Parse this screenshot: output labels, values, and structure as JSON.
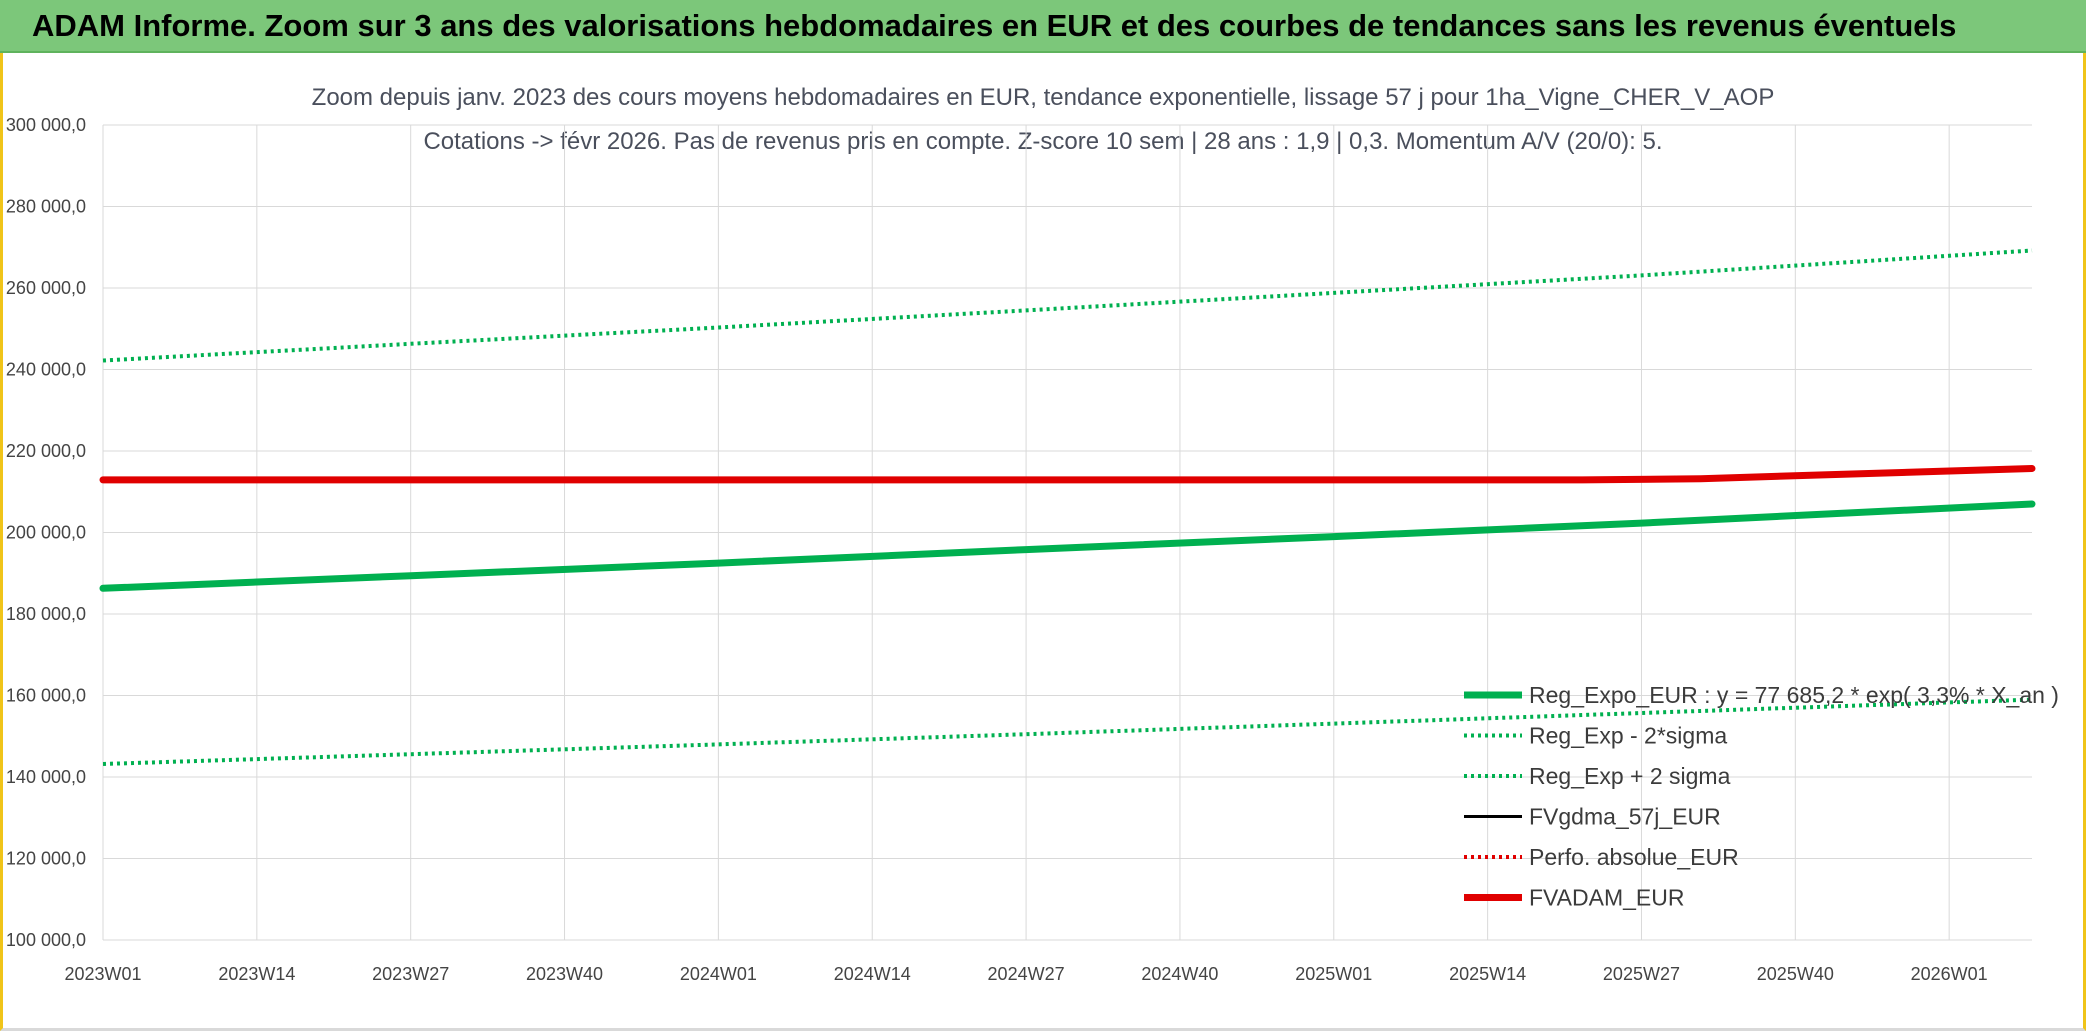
{
  "banner": {
    "title": "ADAM Informe. Zoom sur 3 ans des valorisations hebdomadaires en EUR et des courbes de tendances sans les revenus éventuels"
  },
  "colors": {
    "banner_bg": "#7cc77a",
    "green": "#00b050",
    "red": "#e00000",
    "black": "#000000",
    "grid": "#d9d9d9"
  },
  "chart_data": {
    "type": "line",
    "title": "Zoom depuis janv. 2023 des cours moyens hebdomadaires en EUR, tendance exponentielle, lissage 57 j pour 1ha_Vigne_CHER_V_AOP",
    "subtitle": "Cotations -> févr 2026. Pas de revenus pris en compte. Z-score 10 sem | 28 ans : 1,9 | 0,3. Momentum A/V (20/0): 5.",
    "x_tick_labels": [
      "2023W01",
      "2023W14",
      "2023W27",
      "2023W40",
      "2024W01",
      "2024W14",
      "2024W27",
      "2024W40",
      "2025W01",
      "2025W14",
      "2025W27",
      "2025W40",
      "2026W01"
    ],
    "x_range_weeks": [
      0,
      163
    ],
    "y_tick_labels": [
      "100 000,0",
      "120 000,0",
      "140 000,0",
      "160 000,0",
      "180 000,0",
      "200 000,0",
      "220 000,0",
      "240 000,0",
      "260 000,0",
      "280 000,0",
      "300 000,0"
    ],
    "ylim": [
      100000,
      300000
    ],
    "grid": true,
    "legend_position": "bottom-right",
    "series": [
      {
        "name": "Reg_Expo_EUR : y = 77 685,2 * exp( 3,3% * X_an )",
        "style": "solid-thick",
        "color": "#00b050",
        "points": [
          [
            0,
            186300
          ],
          [
            26,
            189400
          ],
          [
            52,
            192500
          ],
          [
            78,
            195800
          ],
          [
            104,
            199000
          ],
          [
            130,
            202300
          ],
          [
            163,
            207000
          ]
        ]
      },
      {
        "name": "Reg_Exp - 2*sigma",
        "style": "dotted",
        "color": "#00b050",
        "points": [
          [
            0,
            143200
          ],
          [
            26,
            145600
          ],
          [
            52,
            148000
          ],
          [
            78,
            150500
          ],
          [
            104,
            153100
          ],
          [
            130,
            155700
          ],
          [
            163,
            159000
          ]
        ]
      },
      {
        "name": "Reg_Exp + 2 sigma",
        "style": "dotted",
        "color": "#00b050",
        "points": [
          [
            0,
            242200
          ],
          [
            26,
            246300
          ],
          [
            52,
            250300
          ],
          [
            78,
            254500
          ],
          [
            104,
            258800
          ],
          [
            130,
            263100
          ],
          [
            163,
            269200
          ]
        ]
      },
      {
        "name": "FVgdma_57j_EUR",
        "style": "solid",
        "color": "#000000",
        "points": [
          [
            0,
            213000
          ],
          [
            125,
            213000
          ],
          [
            135,
            213300
          ],
          [
            145,
            214200
          ],
          [
            155,
            215100
          ],
          [
            163,
            215700
          ]
        ]
      },
      {
        "name": "Perfo. absolue_EUR",
        "style": "dotted",
        "color": "#e00000",
        "points": []
      },
      {
        "name": "FVADAM_EUR",
        "style": "solid-thick",
        "color": "#e00000",
        "points": [
          [
            0,
            212900
          ],
          [
            125,
            212900
          ],
          [
            135,
            213200
          ],
          [
            145,
            214100
          ],
          [
            155,
            215000
          ],
          [
            163,
            215700
          ]
        ]
      }
    ]
  }
}
